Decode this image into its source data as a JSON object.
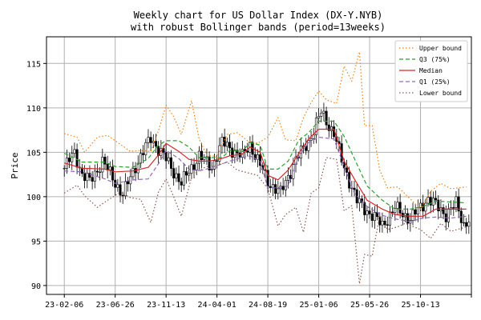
{
  "chart_data": {
    "type": "line",
    "title": "Weekly chart for US Dollar Index (DX-Y.NYB)\nwith robust Bollinger bands (period=13weeks)",
    "xlabel": "",
    "ylabel": "Price",
    "xlim": [
      "2022-12-19",
      "2026-03-02"
    ],
    "ylim": [
      89,
      118
    ],
    "x_tick_labels": [
      "23-02-06",
      "23-06-26",
      "23-11-13",
      "24-04-01",
      "24-08-19",
      "25-01-06",
      "25-05-26",
      "25-10-13",
      ""
    ],
    "x_ticks": [
      "2023-02-06",
      "2023-06-26",
      "2023-11-13",
      "2024-04-01",
      "2024-08-19",
      "2025-01-06",
      "2025-05-26",
      "2025-10-13",
      "2026-03-02"
    ],
    "y_ticks": [
      90,
      95,
      100,
      105,
      110,
      115
    ],
    "grid": true,
    "legend_position": "top-right",
    "series": [
      {
        "name": "Upper bound",
        "color": "#ff7f0e",
        "style": "dotted",
        "data": [
          [
            "2023-02-06",
            107.1
          ],
          [
            "2023-03-13",
            106.7
          ],
          [
            "2023-04-03",
            105.0
          ],
          [
            "2023-05-08",
            106.7
          ],
          [
            "2023-06-05",
            106.9
          ],
          [
            "2023-07-10",
            105.9
          ],
          [
            "2023-08-07",
            105.1
          ],
          [
            "2023-09-04",
            105.2
          ],
          [
            "2023-10-02",
            105.1
          ],
          [
            "2023-10-23",
            107.4
          ],
          [
            "2023-11-13",
            110.3
          ],
          [
            "2023-12-04",
            109.0
          ],
          [
            "2023-12-25",
            107.0
          ],
          [
            "2024-01-22",
            110.8
          ],
          [
            "2024-02-12",
            106.5
          ],
          [
            "2024-03-04",
            104.7
          ],
          [
            "2024-04-01",
            104.5
          ],
          [
            "2024-04-29",
            107.0
          ],
          [
            "2024-05-27",
            107.2
          ],
          [
            "2024-06-24",
            106.3
          ],
          [
            "2024-07-22",
            106.0
          ],
          [
            "2024-08-19",
            106.7
          ],
          [
            "2024-09-16",
            108.9
          ],
          [
            "2024-10-07",
            106.4
          ],
          [
            "2024-11-04",
            106.3
          ],
          [
            "2024-11-25",
            108.9
          ],
          [
            "2024-12-16",
            110.6
          ],
          [
            "2025-01-06",
            111.9
          ],
          [
            "2025-01-27",
            110.9
          ],
          [
            "2025-02-24",
            110.5
          ],
          [
            "2025-03-17",
            114.7
          ],
          [
            "2025-04-07",
            113.0
          ],
          [
            "2025-04-28",
            116.3
          ],
          [
            "2025-05-12",
            108.0
          ],
          [
            "2025-06-02",
            108.0
          ],
          [
            "2025-06-23",
            103.0
          ],
          [
            "2025-07-14",
            101.0
          ],
          [
            "2025-08-11",
            101.1
          ],
          [
            "2025-09-01",
            100.3
          ],
          [
            "2025-10-13",
            98.6
          ],
          [
            "2025-11-10",
            100.6
          ],
          [
            "2025-12-08",
            101.5
          ],
          [
            "2026-01-05",
            100.9
          ],
          [
            "2026-02-16",
            101.1
          ]
        ]
      },
      {
        "name": "Q3 (75%)",
        "color": "#2ca02c",
        "style": "dashed",
        "data": [
          [
            "2023-02-06",
            104.9
          ],
          [
            "2023-03-27",
            103.9
          ],
          [
            "2023-05-29",
            103.9
          ],
          [
            "2023-06-26",
            103.4
          ],
          [
            "2023-08-14",
            103.3
          ],
          [
            "2023-09-25",
            104.3
          ],
          [
            "2023-10-23",
            105.8
          ],
          [
            "2023-11-13",
            106.3
          ],
          [
            "2023-12-18",
            106.3
          ],
          [
            "2024-01-15",
            105.6
          ],
          [
            "2024-02-12",
            104.4
          ],
          [
            "2024-03-11",
            104.4
          ],
          [
            "2024-04-15",
            104.4
          ],
          [
            "2024-05-06",
            105.2
          ],
          [
            "2024-06-10",
            105.1
          ],
          [
            "2024-07-01",
            106.1
          ],
          [
            "2024-07-29",
            105.8
          ],
          [
            "2024-08-19",
            103.1
          ],
          [
            "2024-09-16",
            103.1
          ],
          [
            "2024-10-14",
            104.0
          ],
          [
            "2024-11-11",
            106.3
          ],
          [
            "2024-12-09",
            107.2
          ],
          [
            "2025-01-06",
            108.5
          ],
          [
            "2025-02-17",
            108.5
          ],
          [
            "2025-03-17",
            106.8
          ],
          [
            "2025-04-14",
            104.3
          ],
          [
            "2025-05-19",
            101.2
          ],
          [
            "2025-06-30",
            99.6
          ],
          [
            "2025-08-04",
            98.6
          ],
          [
            "2025-09-15",
            98.6
          ],
          [
            "2025-10-20",
            98.9
          ],
          [
            "2025-11-24",
            99.5
          ],
          [
            "2026-01-05",
            99.4
          ],
          [
            "2026-02-16",
            99.3
          ]
        ]
      },
      {
        "name": "Median",
        "color": "#d62728",
        "style": "solid",
        "data": [
          [
            "2023-02-06",
            103.8
          ],
          [
            "2023-03-27",
            103.2
          ],
          [
            "2023-05-29",
            103.1
          ],
          [
            "2023-06-26",
            102.8
          ],
          [
            "2023-08-14",
            102.9
          ],
          [
            "2023-09-25",
            103.3
          ],
          [
            "2023-10-23",
            104.7
          ],
          [
            "2023-11-13",
            106.0
          ],
          [
            "2023-12-18",
            105.1
          ],
          [
            "2024-01-15",
            104.2
          ],
          [
            "2024-02-12",
            104.0
          ],
          [
            "2024-03-11",
            104.0
          ],
          [
            "2024-04-15",
            104.3
          ],
          [
            "2024-05-06",
            104.6
          ],
          [
            "2024-06-10",
            104.8
          ],
          [
            "2024-07-01",
            105.6
          ],
          [
            "2024-07-29",
            105.0
          ],
          [
            "2024-08-19",
            102.4
          ],
          [
            "2024-09-16",
            101.9
          ],
          [
            "2024-10-14",
            103.0
          ],
          [
            "2024-11-11",
            104.8
          ],
          [
            "2024-12-09",
            106.5
          ],
          [
            "2025-01-06",
            107.6
          ],
          [
            "2025-02-17",
            107.6
          ],
          [
            "2025-03-17",
            104.0
          ],
          [
            "2025-04-14",
            102.0
          ],
          [
            "2025-05-19",
            99.6
          ],
          [
            "2025-06-30",
            98.6
          ],
          [
            "2025-08-04",
            98.0
          ],
          [
            "2025-09-15",
            97.8
          ],
          [
            "2025-10-20",
            97.8
          ],
          [
            "2025-11-24",
            98.6
          ],
          [
            "2026-01-05",
            98.6
          ],
          [
            "2026-02-16",
            98.6
          ]
        ]
      },
      {
        "name": "Q1 (25%)",
        "color": "#9467bd",
        "style": "dashed",
        "data": [
          [
            "2023-02-06",
            102.9
          ],
          [
            "2023-03-27",
            102.8
          ],
          [
            "2023-05-29",
            102.0
          ],
          [
            "2023-06-26",
            101.5
          ],
          [
            "2023-08-14",
            101.9
          ],
          [
            "2023-09-25",
            102.0
          ],
          [
            "2023-10-23",
            103.7
          ],
          [
            "2023-11-13",
            105.2
          ],
          [
            "2023-12-18",
            104.3
          ],
          [
            "2024-01-15",
            103.1
          ],
          [
            "2024-02-12",
            102.9
          ],
          [
            "2024-03-11",
            103.2
          ],
          [
            "2024-04-15",
            103.7
          ],
          [
            "2024-05-06",
            104.0
          ],
          [
            "2024-06-10",
            104.4
          ],
          [
            "2024-07-01",
            104.6
          ],
          [
            "2024-07-29",
            104.0
          ],
          [
            "2024-08-19",
            101.0
          ],
          [
            "2024-09-16",
            101.0
          ],
          [
            "2024-10-14",
            101.2
          ],
          [
            "2024-11-11",
            104.5
          ],
          [
            "2024-12-09",
            106.1
          ],
          [
            "2025-01-06",
            106.7
          ],
          [
            "2025-02-17",
            106.5
          ],
          [
            "2025-03-17",
            103.4
          ],
          [
            "2025-04-14",
            100.4
          ],
          [
            "2025-05-19",
            98.9
          ],
          [
            "2025-06-30",
            97.9
          ],
          [
            "2025-08-04",
            97.5
          ],
          [
            "2025-09-15",
            97.2
          ],
          [
            "2025-10-20",
            97.6
          ],
          [
            "2025-11-24",
            97.7
          ],
          [
            "2026-01-05",
            97.6
          ],
          [
            "2026-02-16",
            97.8
          ]
        ]
      },
      {
        "name": "Lower bound",
        "color": "#8c564b",
        "style": "dotted",
        "data": [
          [
            "2023-02-06",
            100.4
          ],
          [
            "2023-03-13",
            101.3
          ],
          [
            "2023-04-03",
            100.1
          ],
          [
            "2023-05-08",
            98.8
          ],
          [
            "2023-06-05",
            99.6
          ],
          [
            "2023-07-10",
            100.5
          ],
          [
            "2023-08-07",
            99.9
          ],
          [
            "2023-09-04",
            99.7
          ],
          [
            "2023-10-02",
            97.1
          ],
          [
            "2023-10-23",
            100.5
          ],
          [
            "2023-11-13",
            102.0
          ],
          [
            "2023-12-04",
            100.0
          ],
          [
            "2023-12-25",
            97.8
          ],
          [
            "2024-01-22",
            102.2
          ],
          [
            "2024-02-12",
            103.0
          ],
          [
            "2024-03-04",
            103.4
          ],
          [
            "2024-04-01",
            103.5
          ],
          [
            "2024-04-29",
            103.9
          ],
          [
            "2024-05-27",
            103.0
          ],
          [
            "2024-06-24",
            102.7
          ],
          [
            "2024-07-22",
            102.4
          ],
          [
            "2024-08-19",
            100.9
          ],
          [
            "2024-09-16",
            96.7
          ],
          [
            "2024-10-07",
            98.0
          ],
          [
            "2024-11-04",
            98.8
          ],
          [
            "2024-11-25",
            96.0
          ],
          [
            "2024-12-16",
            100.4
          ],
          [
            "2025-01-06",
            101.0
          ],
          [
            "2025-01-27",
            104.4
          ],
          [
            "2025-02-24",
            104.2
          ],
          [
            "2025-03-17",
            98.4
          ],
          [
            "2025-04-07",
            99.0
          ],
          [
            "2025-04-28",
            90.2
          ],
          [
            "2025-05-12",
            93.5
          ],
          [
            "2025-06-02",
            93.3
          ],
          [
            "2025-06-23",
            97.9
          ],
          [
            "2025-07-14",
            96.3
          ],
          [
            "2025-08-11",
            96.6
          ],
          [
            "2025-09-01",
            97.0
          ],
          [
            "2025-10-13",
            96.3
          ],
          [
            "2025-11-10",
            95.3
          ],
          [
            "2025-12-08",
            97.0
          ],
          [
            "2026-01-05",
            96.1
          ],
          [
            "2026-02-16",
            96.6
          ]
        ]
      }
    ],
    "price_anchors": [
      [
        "2023-02-06",
        103.2
      ],
      [
        "2023-03-06",
        105.0
      ],
      [
        "2023-03-27",
        102.5
      ],
      [
        "2023-04-17",
        101.7
      ],
      [
        "2023-05-22",
        104.0
      ],
      [
        "2023-07-17",
        100.2
      ],
      [
        "2023-08-21",
        103.5
      ],
      [
        "2023-10-02",
        106.6
      ],
      [
        "2023-11-13",
        104.2
      ],
      [
        "2023-12-25",
        101.5
      ],
      [
        "2024-02-12",
        104.6
      ],
      [
        "2024-03-18",
        103.3
      ],
      [
        "2024-04-15",
        106.1
      ],
      [
        "2024-06-10",
        104.5
      ],
      [
        "2024-07-01",
        105.9
      ],
      [
        "2024-08-19",
        101.7
      ],
      [
        "2024-09-23",
        100.4
      ],
      [
        "2024-11-04",
        104.2
      ],
      [
        "2024-12-09",
        106.2
      ],
      [
        "2025-01-13",
        109.5
      ],
      [
        "2025-02-17",
        107.1
      ],
      [
        "2025-03-10",
        104.1
      ],
      [
        "2025-04-21",
        99.5
      ],
      [
        "2025-06-30",
        96.8
      ],
      [
        "2025-08-04",
        98.7
      ],
      [
        "2025-09-15",
        97.5
      ],
      [
        "2025-11-03",
        99.8
      ],
      [
        "2025-12-22",
        98.0
      ],
      [
        "2026-01-19",
        99.2
      ],
      [
        "2026-02-09",
        96.9
      ],
      [
        "2026-02-23",
        97.4
      ]
    ]
  }
}
